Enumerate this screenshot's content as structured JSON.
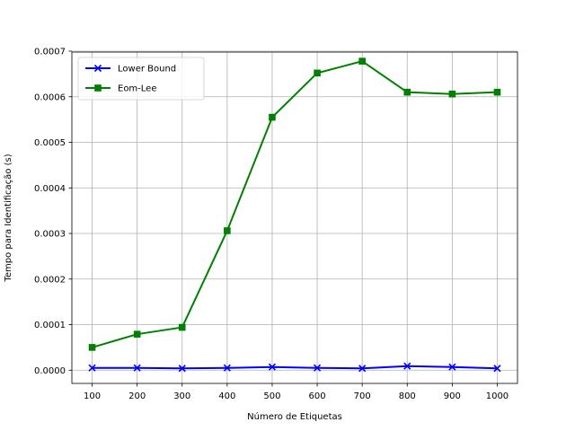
{
  "chart_data": {
    "type": "line",
    "title": "",
    "xlabel": "Número de Etiquetas",
    "ylabel": "Tempo para Identificação (s)",
    "x": [
      100,
      200,
      300,
      400,
      500,
      600,
      700,
      800,
      900,
      1000
    ],
    "x_tick_labels": [
      "100",
      "200",
      "300",
      "400",
      "500",
      "600",
      "700",
      "800",
      "900",
      "1000"
    ],
    "y_ticks": [
      0,
      0.0001,
      0.0002,
      0.0003,
      0.0004,
      0.0005,
      0.0006,
      0.0007
    ],
    "y_tick_labels": [
      "0.0000",
      "0.0001",
      "0.0002",
      "0.0003",
      "0.0004",
      "0.0005",
      "0.0006",
      "0.0007"
    ],
    "xlim": [
      55,
      1045
    ],
    "ylim": [
      -2.9e-05,
      0.000698
    ],
    "grid": true,
    "legend_position": "upper-left",
    "series": [
      {
        "name": "Lower Bound",
        "color": "#0000ff",
        "marker": "x",
        "values": [
          5e-06,
          5e-06,
          4e-06,
          5e-06,
          7e-06,
          5e-06,
          4e-06,
          9e-06,
          7e-06,
          4e-06
        ]
      },
      {
        "name": "Eom-Lee",
        "color": "#008000",
        "marker": "square",
        "values": [
          5e-05,
          7.9e-05,
          9.4e-05,
          0.000306,
          0.000555,
          0.000652,
          0.000678,
          0.00061,
          0.000606,
          0.00061
        ]
      }
    ]
  }
}
